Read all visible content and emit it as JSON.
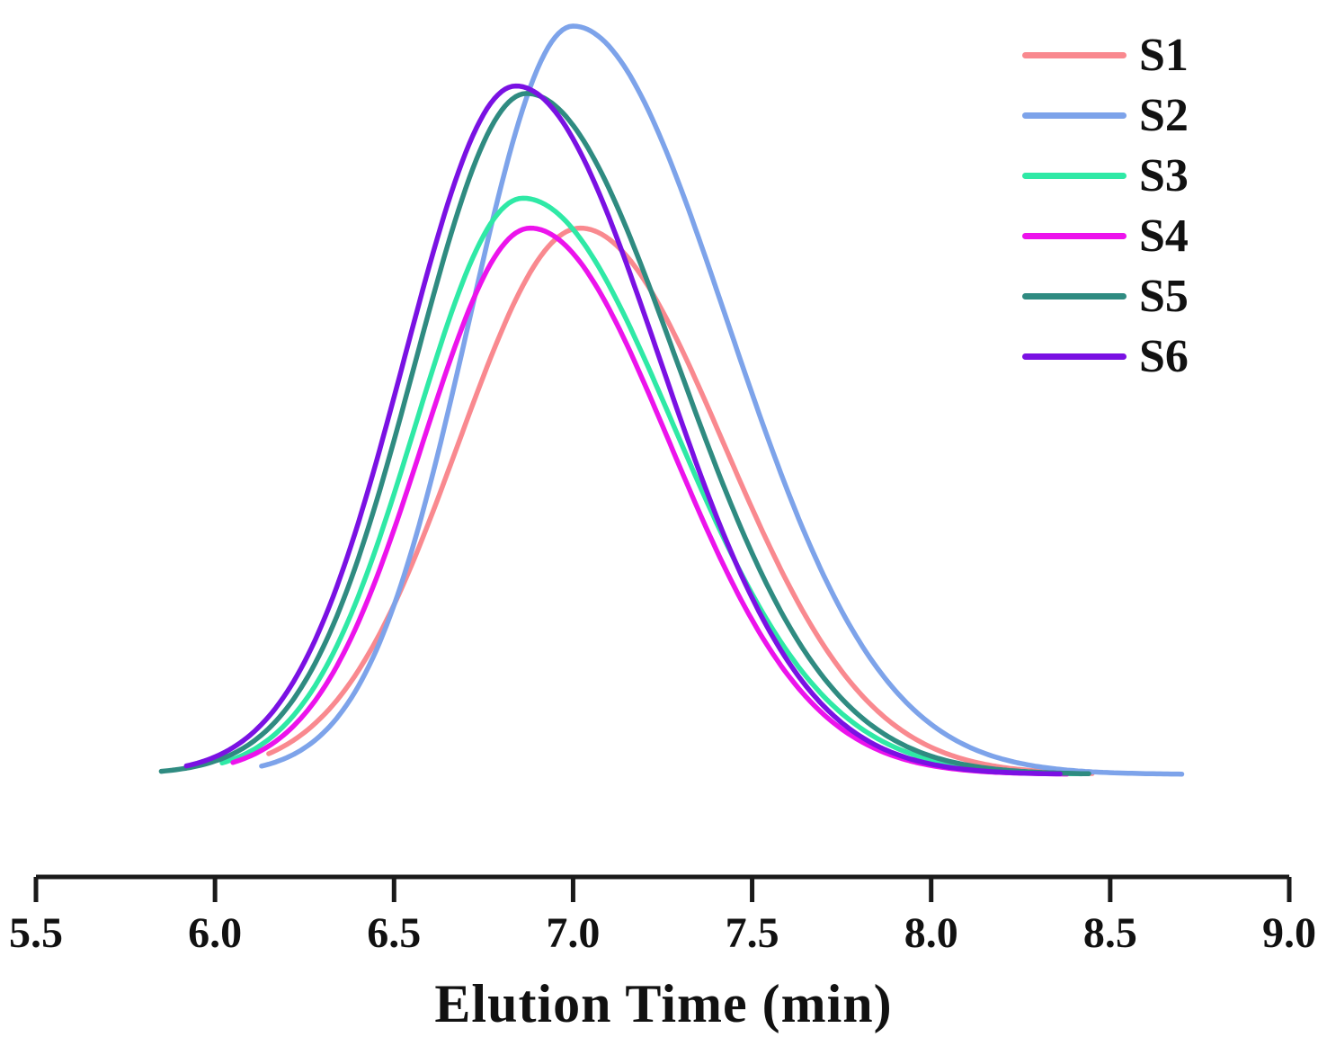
{
  "chart_data": {
    "type": "line",
    "title": "",
    "xlabel": "Elution Time (min)",
    "ylabel": "",
    "grid": false,
    "legend_position": "top-right",
    "axis_color": "#1a1a1a",
    "x_axis": {
      "min": 5.5,
      "max": 9.0,
      "tick_step": 0.5,
      "tick_labels": [
        "5.5",
        "6.0",
        "6.5",
        "7.0",
        "7.5",
        "8.0",
        "8.5",
        "9.0"
      ]
    },
    "y_axis": {
      "visible": false,
      "normalized_intensity_range": [
        0,
        1
      ]
    },
    "series_description": "GPC/SEC elution chromatogram traces; each curve modeled as a skewed peak: intensity = peak_intensity * exp(-0.5*((t-peak_time)/sigma)^2), sigma = sigma_left for t<peak_time else sigma_right, drawn over [start_min, end_min]",
    "series": [
      {
        "name": "S1",
        "color": "#F9898F",
        "peak_time_min": 7.02,
        "peak_intensity": 0.73,
        "sigma_left": 0.34,
        "sigma_right": 0.4,
        "start_min": 6.15,
        "end_min": 8.45
      },
      {
        "name": "S2",
        "color": "#7DA3EA",
        "peak_time_min": 7.0,
        "peak_intensity": 1.0,
        "sigma_left": 0.29,
        "sigma_right": 0.43,
        "start_min": 6.13,
        "end_min": 8.7
      },
      {
        "name": "S3",
        "color": "#2FE9A6",
        "peak_time_min": 6.86,
        "peak_intensity": 0.77,
        "sigma_left": 0.3,
        "sigma_right": 0.42,
        "start_min": 6.02,
        "end_min": 8.42
      },
      {
        "name": "S4",
        "color": "#EC13EC",
        "peak_time_min": 6.88,
        "peak_intensity": 0.73,
        "sigma_left": 0.3,
        "sigma_right": 0.39,
        "start_min": 6.05,
        "end_min": 8.38
      },
      {
        "name": "S5",
        "color": "#2F8B81",
        "peak_time_min": 6.87,
        "peak_intensity": 0.91,
        "sigma_left": 0.31,
        "sigma_right": 0.42,
        "start_min": 5.85,
        "end_min": 8.44
      },
      {
        "name": "S6",
        "color": "#7A11E3",
        "peak_time_min": 6.84,
        "peak_intensity": 0.92,
        "sigma_left": 0.31,
        "sigma_right": 0.4,
        "start_min": 5.92,
        "end_min": 8.36
      }
    ]
  }
}
